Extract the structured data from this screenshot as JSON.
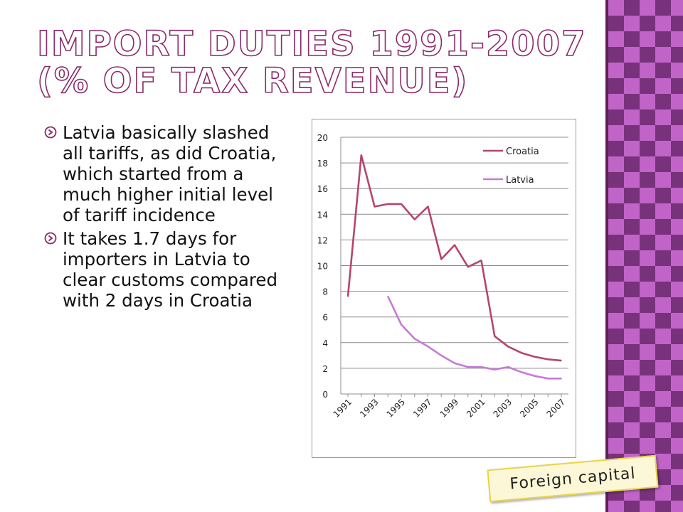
{
  "slide": {
    "title_line1": "Import Duties 1991-2007",
    "title_line2": "(% of tax revenue)",
    "bullets": [
      "Latvia basically slashed all tariffs, as did Croatia, which started from a much higher initial level of tariff incidence",
      "It takes 1.7 days for importers in Latvia to clear customs compared with 2 days in Croatia"
    ],
    "tag_label": "Foreign capital",
    "colors": {
      "title_outline": "#8a2b6a",
      "bullet_icon": "#8a2b6a",
      "panel": "#c064c8",
      "tag_border": "#e8d44a"
    }
  },
  "chart_data": {
    "type": "line",
    "title": "",
    "xlabel": "",
    "ylabel": "",
    "ylim": [
      0,
      20
    ],
    "yticks": [
      "0",
      "2",
      "4",
      "6",
      "8",
      "10",
      "12",
      "14",
      "16",
      "18",
      "20"
    ],
    "x": [
      1991,
      1992,
      1993,
      1994,
      1995,
      1996,
      1997,
      1998,
      1999,
      2000,
      2001,
      2002,
      2003,
      2004,
      2005,
      2006,
      2007
    ],
    "xtick_labels": [
      "1991",
      "1993",
      "1995",
      "1997",
      "1999",
      "2001",
      "2003",
      "2005",
      "2007"
    ],
    "grid": true,
    "legend_position": "top-right",
    "series": [
      {
        "name": "Croatia",
        "color": "#b5456f",
        "values": [
          7.6,
          18.6,
          14.6,
          14.8,
          14.8,
          13.6,
          14.6,
          10.5,
          11.6,
          9.9,
          10.4,
          4.5,
          3.7,
          3.2,
          2.9,
          2.7,
          2.6
        ]
      },
      {
        "name": "Latvia",
        "color": "#c57ad6",
        "values": [
          null,
          null,
          null,
          7.6,
          5.4,
          4.3,
          3.7,
          3.0,
          2.4,
          2.1,
          2.1,
          1.9,
          2.1,
          1.7,
          1.4,
          1.2,
          1.2
        ]
      }
    ]
  }
}
